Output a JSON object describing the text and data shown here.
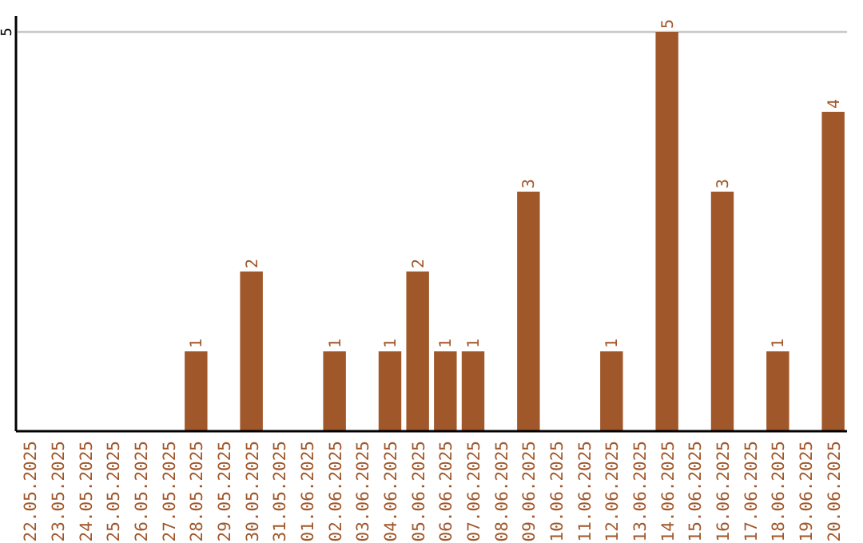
{
  "chart_data": {
    "type": "bar",
    "categories": [
      "22.05.2025",
      "23.05.2025",
      "24.05.2025",
      "25.05.2025",
      "26.05.2025",
      "27.05.2025",
      "28.05.2025",
      "29.05.2025",
      "30.05.2025",
      "31.05.2025",
      "01.06.2025",
      "02.06.2025",
      "03.06.2025",
      "04.06.2025",
      "05.06.2025",
      "06.06.2025",
      "07.06.2025",
      "08.06.2025",
      "09.06.2025",
      "10.06.2025",
      "11.06.2025",
      "12.06.2025",
      "13.06.2025",
      "14.06.2025",
      "15.06.2025",
      "16.06.2025",
      "17.06.2025",
      "18.06.2025",
      "19.06.2025",
      "20.06.2025"
    ],
    "values": [
      0,
      0,
      0,
      0,
      0,
      0,
      1,
      0,
      2,
      0,
      0,
      1,
      0,
      1,
      2,
      1,
      1,
      0,
      3,
      0,
      0,
      1,
      0,
      5,
      0,
      3,
      0,
      1,
      0,
      4
    ],
    "value_labels": [
      null,
      null,
      null,
      null,
      null,
      null,
      "1",
      null,
      "2",
      null,
      null,
      "1",
      null,
      "1",
      "2",
      "1",
      "1",
      null,
      "3",
      null,
      null,
      "1",
      null,
      "5",
      null,
      "3",
      null,
      "1",
      null,
      "4"
    ],
    "color": "#a0572a",
    "ylim": [
      0,
      5.2
    ],
    "yticks": [
      5
    ],
    "grid": "y"
  }
}
